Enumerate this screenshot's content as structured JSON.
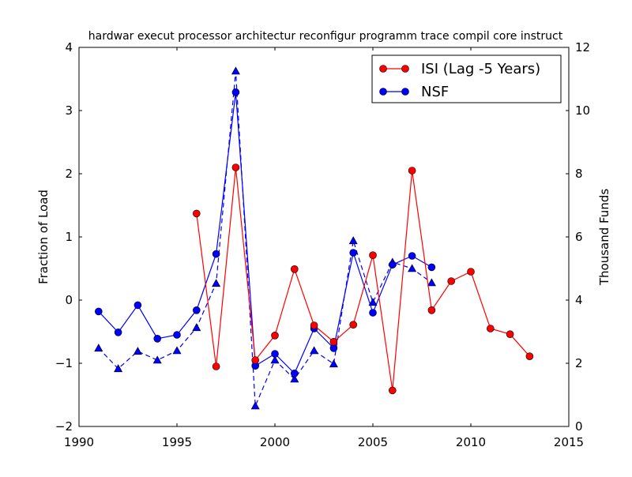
{
  "chart_data": {
    "type": "line",
    "title": "hardwar execut processor architectur reconfigur programm trace compil core instruct",
    "xlabel": "",
    "ylabel": "Fraction of Load",
    "ylabel_right": "Thousand Funds",
    "xlim": [
      1990,
      2015
    ],
    "ylim": [
      -2,
      4
    ],
    "ylim_right": [
      0,
      12
    ],
    "xticks": [
      "1990",
      "1995",
      "2000",
      "2005",
      "2010",
      "2015"
    ],
    "yticks": [
      "−2",
      "−1",
      "0",
      "1",
      "2",
      "3",
      "4"
    ],
    "yticks_right": [
      "0",
      "2",
      "4",
      "6",
      "8",
      "10",
      "12"
    ],
    "legend_position": "top-right",
    "grid": false,
    "series": [
      {
        "name": "ISI (Lag -5 Years)",
        "color": "#ff0000",
        "axis": "left",
        "style": "solid",
        "marker": "circle",
        "in_legend": true,
        "x": [
          1996,
          1997,
          1998,
          1999,
          2000,
          2001,
          2002,
          2003,
          2004,
          2005,
          2006,
          2007,
          2008,
          2009,
          2010,
          2011,
          2012,
          2013
        ],
        "values": [
          1.37,
          -1.05,
          2.1,
          -0.95,
          -0.56,
          0.49,
          -0.4,
          -0.66,
          -0.39,
          0.71,
          -1.43,
          2.05,
          -0.16,
          0.3,
          0.45,
          -0.45,
          -0.54,
          -0.89
        ]
      },
      {
        "name": "NSF",
        "color": "#0000ff",
        "axis": "left",
        "style": "solid",
        "marker": "circle",
        "in_legend": true,
        "x": [
          1991,
          1992,
          1993,
          1994,
          1995,
          1996,
          1997,
          1998,
          1999,
          2000,
          2001,
          2002,
          2003,
          2004,
          2005,
          2006,
          2007,
          2008
        ],
        "values": [
          -0.18,
          -0.51,
          -0.08,
          -0.61,
          -0.55,
          -0.16,
          0.73,
          3.29,
          -1.04,
          -0.85,
          -1.16,
          -0.45,
          -0.76,
          0.75,
          -0.2,
          0.56,
          0.7,
          0.52
        ]
      },
      {
        "name": "NSF funds",
        "color": "#0000ff",
        "axis": "right",
        "style": "dashed",
        "marker": "triangle",
        "in_legend": false,
        "x": [
          1991,
          1992,
          1993,
          1994,
          1995,
          1996,
          1997,
          1998,
          1999,
          2000,
          2001,
          2002,
          2003,
          2004,
          2005,
          2006,
          2007,
          2008
        ],
        "values": [
          2.48,
          1.83,
          2.38,
          2.1,
          2.4,
          3.13,
          4.53,
          11.25,
          0.65,
          2.1,
          1.5,
          2.4,
          1.98,
          5.88,
          3.93,
          5.2,
          5.0,
          4.55
        ]
      }
    ]
  }
}
